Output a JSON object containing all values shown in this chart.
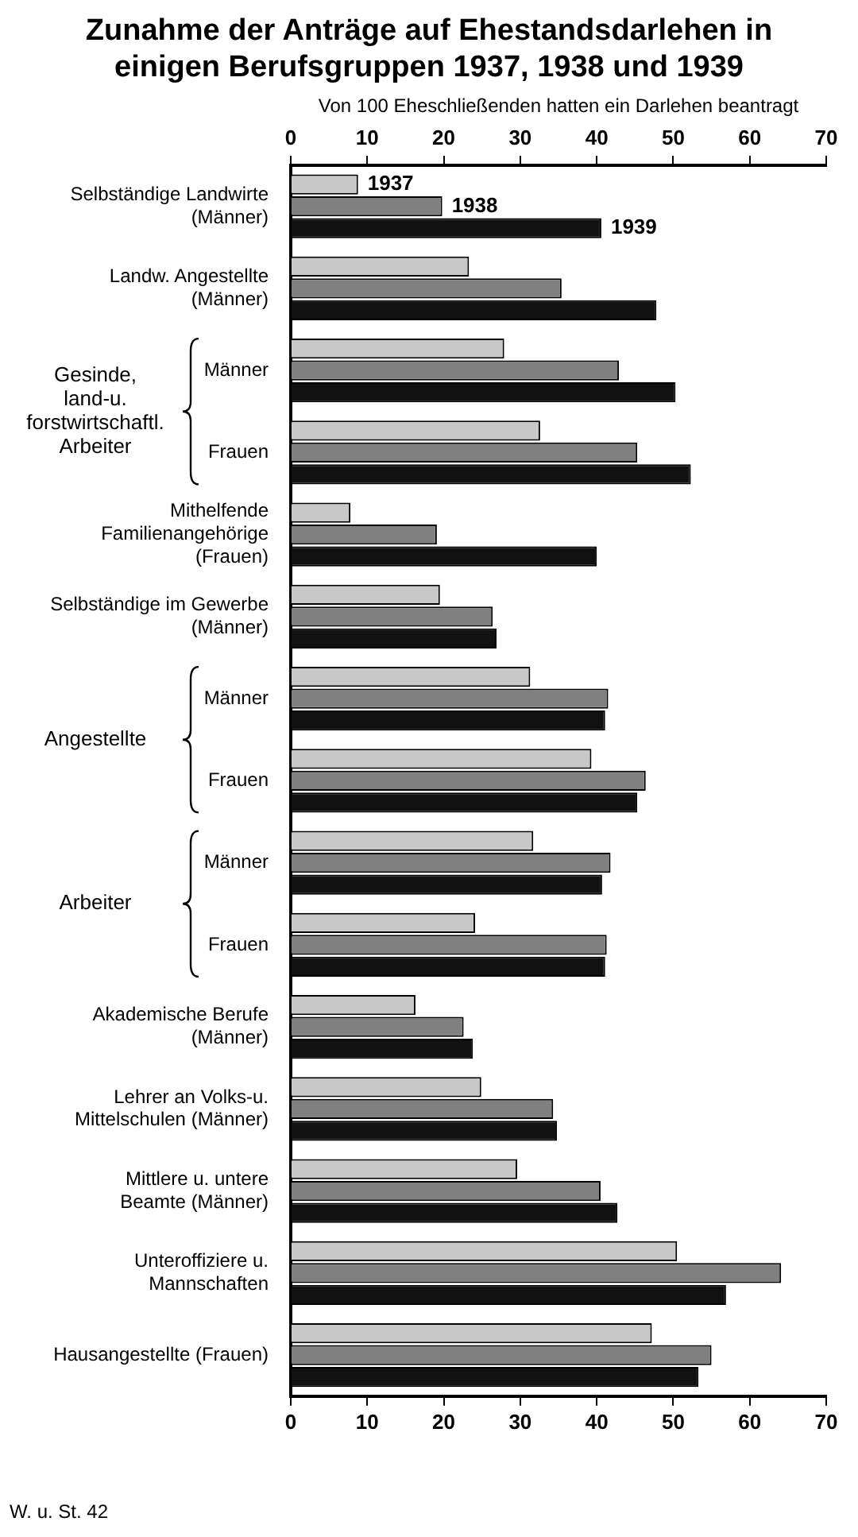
{
  "chart_data": {
    "type": "bar",
    "orientation": "horizontal",
    "title": "Zunahme der Anträge auf Ehestandsdarlehen in einigen Berufsgruppen 1937, 1938 und 1939",
    "x2label": "Von 100 Eheschließenden hatten ein Darlehen beantragt",
    "categories": [
      "Selbständige Landwirte (Männer)",
      "Landw. Angestellte (Männer)",
      "Männer",
      "Frauen",
      "Mithelfende Familienangehörige (Frauen)",
      "Selbständige im Gewerbe (Männer)",
      "Männer",
      "Frauen",
      "Männer",
      "Frauen",
      "Akademische Berufe (Männer)",
      "Lehrer an Volks-u. Mittelschulen (Männer)",
      "Mittlere u. untere Beamte (Männer)",
      "Unteroffiziere u. Mannschaften",
      "Hausangestellte (Frauen)"
    ],
    "series": [
      {
        "name": "1937",
        "color": "#c8c8c8",
        "values": [
          8.8,
          23.3,
          27.9,
          32.6,
          7.8,
          19.5,
          31.3,
          39.3,
          31.7,
          24.1,
          16.3,
          24.9,
          29.6,
          50.5,
          47.2
        ]
      },
      {
        "name": "1938",
        "color": "#808080",
        "values": [
          19.8,
          35.4,
          42.9,
          45.3,
          19.1,
          26.4,
          41.5,
          46.4,
          41.8,
          41.3,
          22.6,
          34.3,
          40.5,
          64.1,
          55.0
        ]
      },
      {
        "name": "1939",
        "color": "#111111",
        "values": [
          40.6,
          47.8,
          50.3,
          52.3,
          40.0,
          26.9,
          41.1,
          45.3,
          40.7,
          41.1,
          23.8,
          34.8,
          42.7,
          56.9,
          53.3
        ]
      }
    ],
    "xlim": [
      0,
      70
    ],
    "xticks": [
      0,
      10,
      20,
      30,
      40,
      50,
      60,
      70
    ],
    "x2lim": [
      0,
      70
    ],
    "x2ticks": [
      0,
      10,
      20,
      30,
      40,
      50,
      60,
      70
    ],
    "legend": false,
    "annotations": [
      "Gesinde, land-u. forstwirtschaftl. Arbeiter",
      "Angestellte",
      "Arbeiter",
      "W. u. St. 42"
    ]
  }
}
